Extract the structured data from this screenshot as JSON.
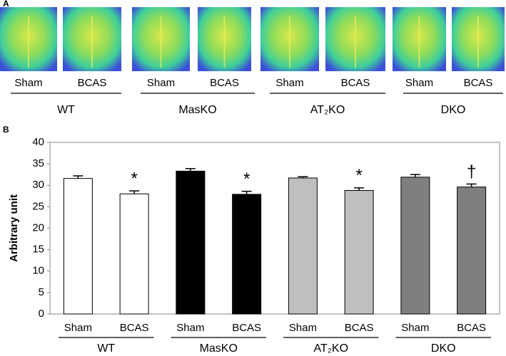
{
  "panel_a": {
    "label": "A",
    "conditions": [
      "Sham",
      "BCAS",
      "Sham",
      "BCAS",
      "Sham",
      "BCAS",
      "Sham",
      "BCAS"
    ],
    "groups": [
      "WT",
      "MasKO",
      "AT₂KO",
      "DKO"
    ]
  },
  "chart_data": {
    "type": "bar",
    "panel_label": "B",
    "y_label": "Arbitrary unit",
    "categories": [
      "Sham",
      "BCAS",
      "Sham",
      "BCAS",
      "Sham",
      "BCAS",
      "Sham",
      "BCAS"
    ],
    "groups": [
      "WT",
      "MasKO",
      "AT₂KO",
      "DKO"
    ],
    "values": [
      31.6,
      28.0,
      33.3,
      27.9,
      31.7,
      28.8,
      31.9,
      29.6
    ],
    "errors": [
      0.6,
      0.7,
      0.6,
      0.7,
      0.3,
      0.6,
      0.6,
      0.7
    ],
    "colors": [
      "#ffffff",
      "#ffffff",
      "#000000",
      "#000000",
      "#bfbfbf",
      "#bfbfbf",
      "#7f7f7f",
      "#7f7f7f"
    ],
    "markers": [
      null,
      "*",
      null,
      "*",
      null,
      "*",
      null,
      "†"
    ],
    "ylim": [
      0,
      40
    ],
    "yticks": [
      0,
      5,
      10,
      15,
      20,
      25,
      30,
      35,
      40
    ],
    "grid": false
  }
}
